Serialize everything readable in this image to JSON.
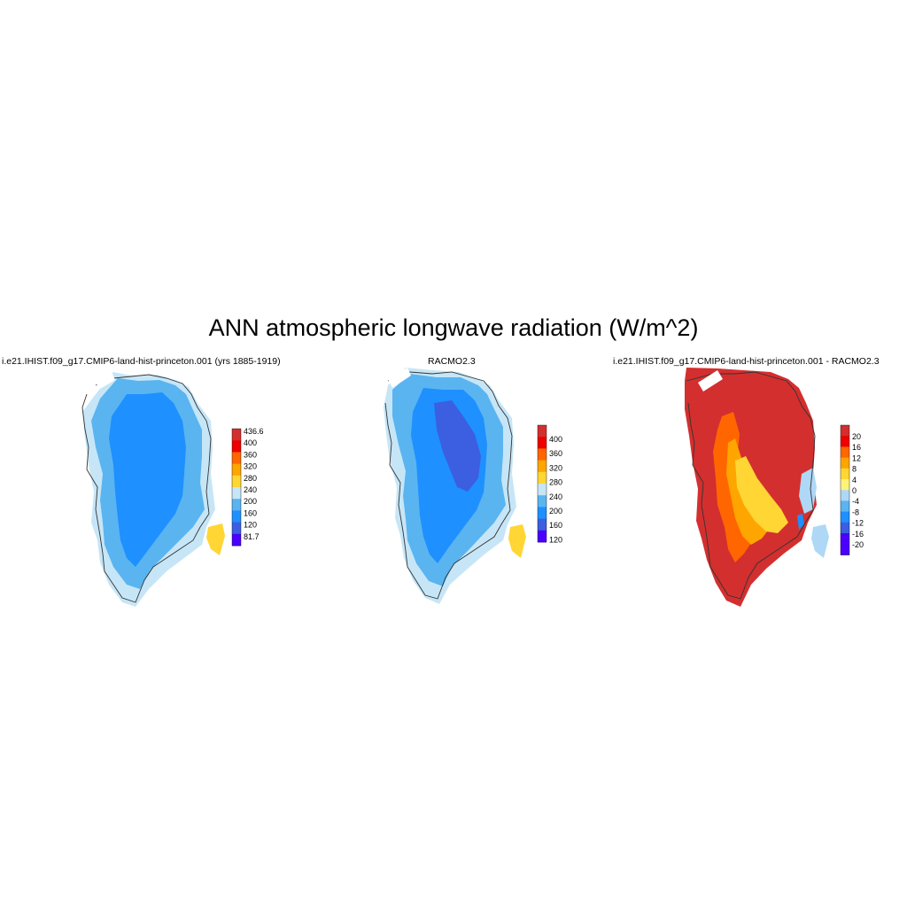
{
  "title": "ANN atmospheric longwave radiation (W/m^2)",
  "panels": [
    {
      "title": "i.e21.IHIST.f09_g17.CMIP6-land-hist-princeton.001 (yrs 1885-1919)",
      "colorbar": {
        "labels": [
          "436.6",
          "400",
          "360",
          "320",
          "280",
          "240",
          "200",
          "160",
          "120",
          "81.7"
        ],
        "colors": [
          "#d32f2f",
          "#ee0000",
          "#ff6600",
          "#ffa500",
          "#ffd633",
          "#c6e6f7",
          "#5ab4f0",
          "#1e90ff",
          "#3b5fe0",
          "#4b00ff"
        ]
      }
    },
    {
      "title": "RACMO2.3",
      "colorbar": {
        "labels": [
          "400",
          "360",
          "320",
          "280",
          "240",
          "200",
          "160",
          "120"
        ],
        "colors": [
          "#d32f2f",
          "#ee0000",
          "#ff6600",
          "#ffa500",
          "#ffd633",
          "#c6e6f7",
          "#5ab4f0",
          "#1e90ff",
          "#3b5fe0",
          "#4b00ff"
        ]
      }
    },
    {
      "title": "i.e21.IHIST.f09_g17.CMIP6-land-hist-princeton.001 - RACMO2.3",
      "colorbar": {
        "labels": [
          "20",
          "16",
          "12",
          "8",
          "4",
          "0",
          "-4",
          "-8",
          "-12",
          "-16",
          "-20"
        ],
        "colors": [
          "#d32f2f",
          "#ee0000",
          "#ff6600",
          "#ffa500",
          "#ffd633",
          "#fff27a",
          "#aed8f5",
          "#5ab4f0",
          "#1e90ff",
          "#3b5fe0",
          "#4b00ff",
          "#4b00ff"
        ]
      }
    }
  ]
}
